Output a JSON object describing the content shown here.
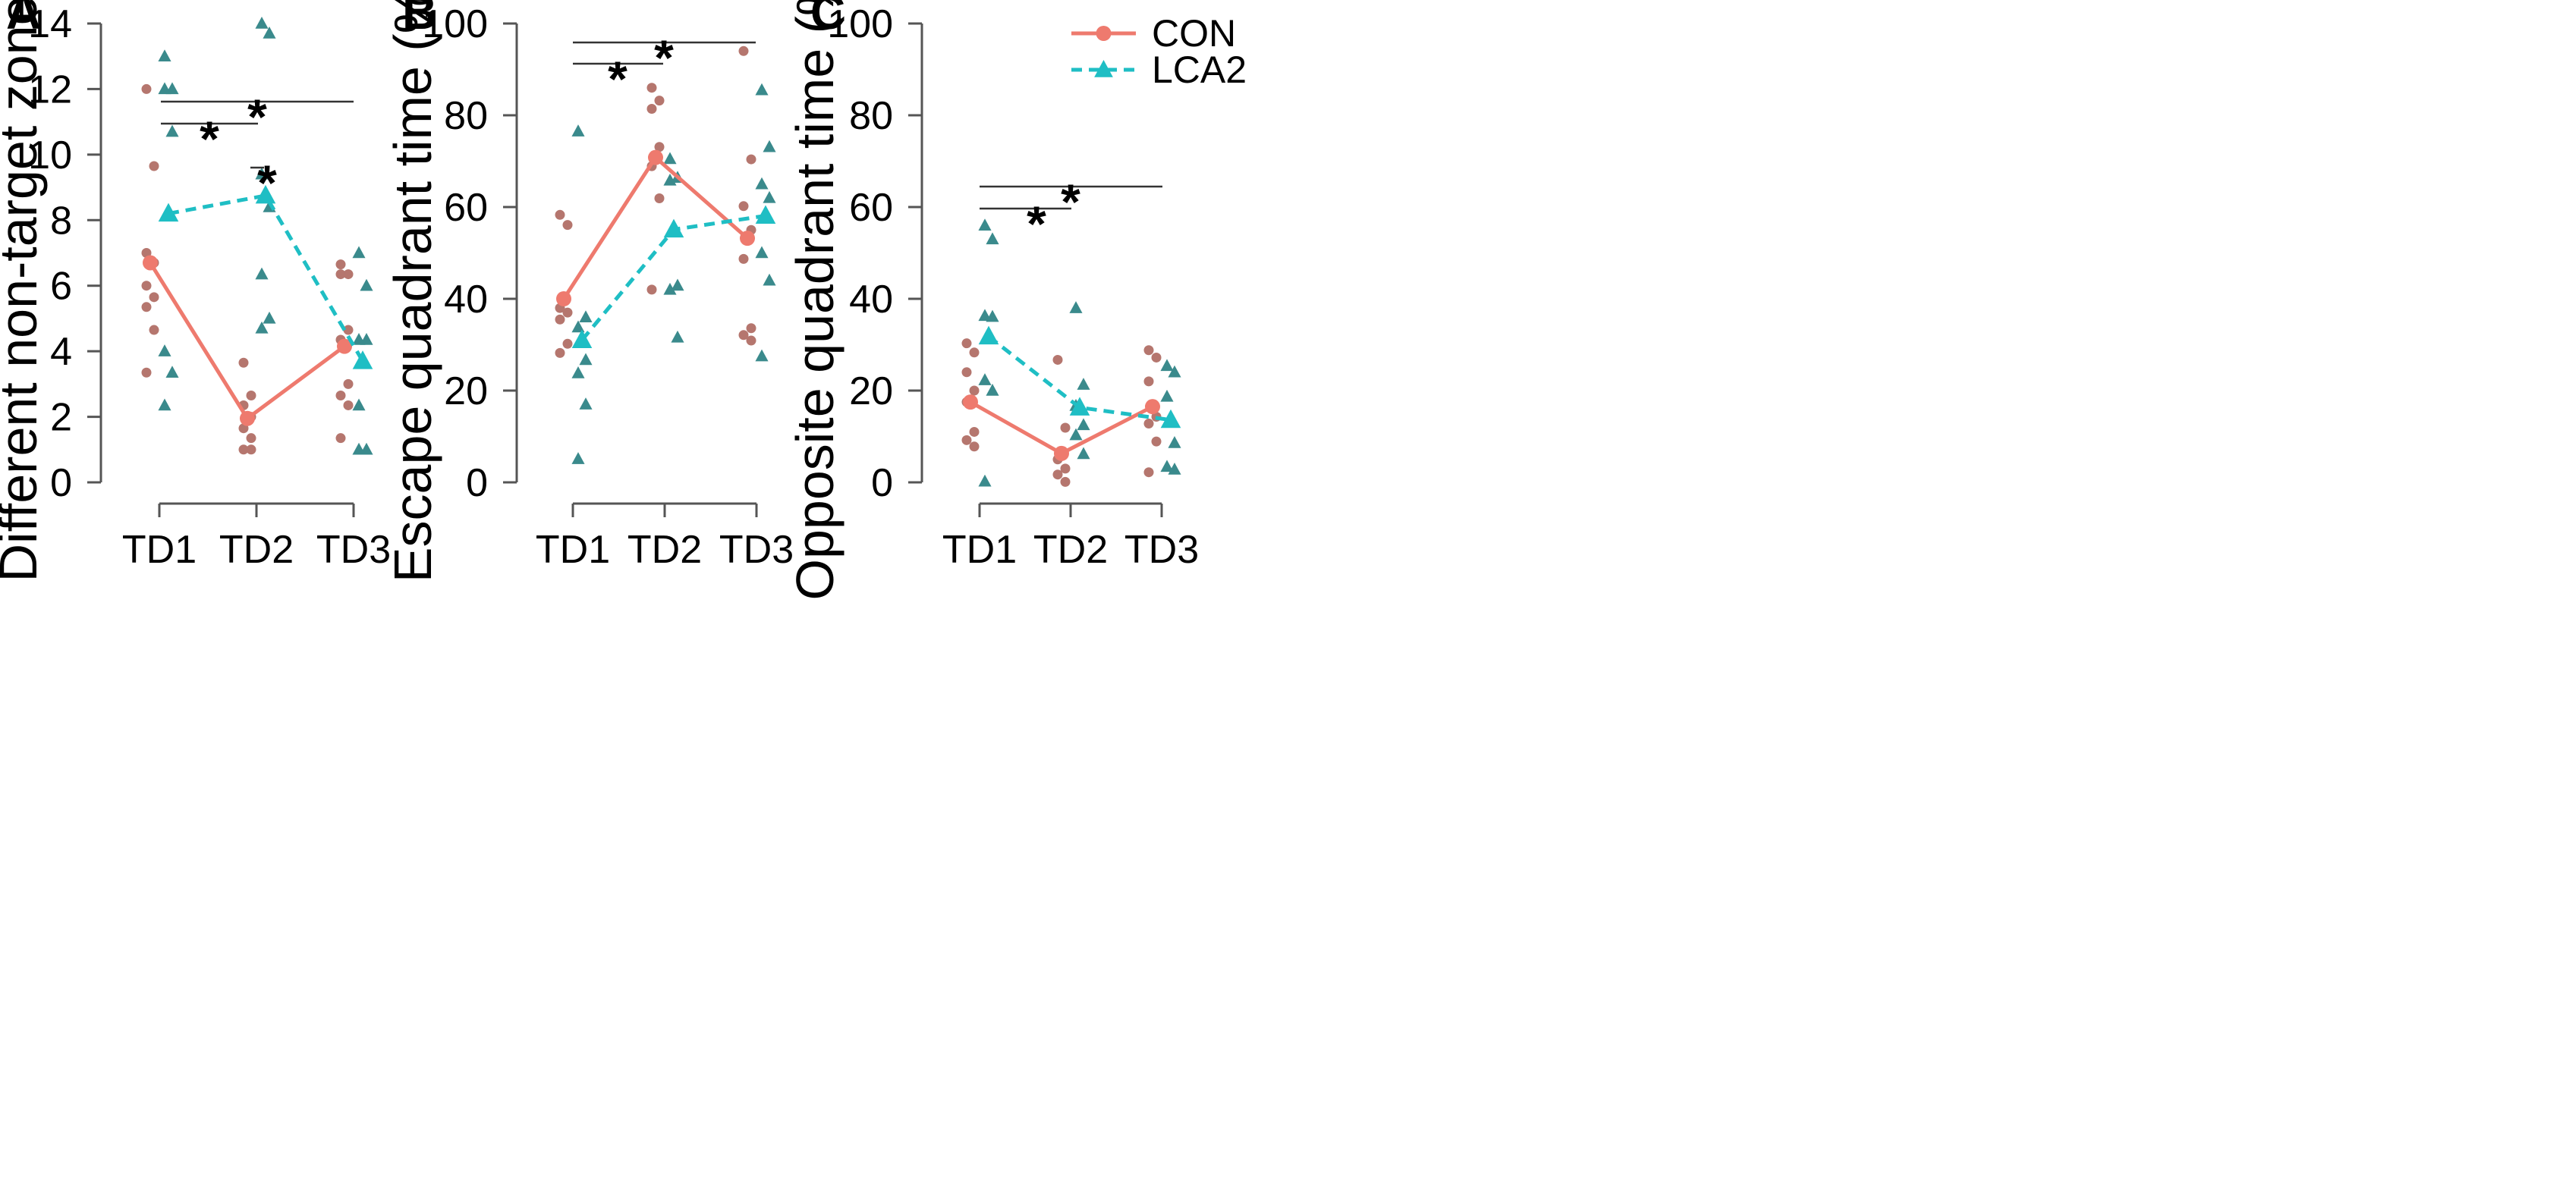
{
  "colors": {
    "con_line": "#ee7a6e",
    "con_point": "#b5766e",
    "lca2_line": "#1fbec4",
    "lca2_point": "#3a8a8c"
  },
  "chart_data": [
    {
      "type": "line",
      "panel": "A",
      "xlabel": "",
      "ylabel": "Different non-target zones",
      "ylim": [
        0,
        14
      ],
      "yticks": [
        0,
        2,
        4,
        6,
        8,
        10,
        12,
        14
      ],
      "categories": [
        "TD1",
        "TD2",
        "TD3"
      ],
      "series": [
        {
          "name": "CON",
          "means": [
            6.7,
            1.95,
            4.15
          ],
          "individual": [
            [
              12,
              9.65,
              7,
              6.7,
              6,
              5.65,
              5.35,
              4.65,
              3.35
            ],
            [
              3.65,
              2.65,
              2.35,
              2,
              1.65,
              1.35,
              1,
              1
            ],
            [
              6.65,
              6.35,
              6.35,
              4.65,
              4.35,
              3,
              2.65,
              2.35,
              1.35
            ]
          ]
        },
        {
          "name": "LCA2",
          "means": [
            8.2,
            8.75,
            3.7
          ],
          "individual": [
            [
              13,
              12,
              12,
              10.7,
              4,
              3.35,
              2.35
            ],
            [
              14,
              13.7,
              9.4,
              8.4,
              6.35,
              5,
              4.7
            ],
            [
              7,
              6,
              4.35,
              4.35,
              2.35,
              1,
              1
            ]
          ]
        }
      ],
      "significance": [
        {
          "from": "TD1",
          "to": "TD2",
          "label": "*"
        },
        {
          "from": "TD1",
          "to": "TD3",
          "label": "*"
        },
        {
          "at": "TD2",
          "label": "*"
        }
      ]
    },
    {
      "type": "line",
      "panel": "B",
      "xlabel": "",
      "ylabel": "Escape quadrant time (%)",
      "ylim": [
        0,
        100
      ],
      "yticks": [
        0,
        20,
        40,
        60,
        80,
        100
      ],
      "categories": [
        "TD1",
        "TD2",
        "TD3"
      ],
      "series": [
        {
          "name": "CON",
          "means": [
            40,
            70.8,
            53.2
          ],
          "individual": [
            [
              58.3,
              56.1,
              38,
              37,
              35.5,
              30.2,
              28.2
            ],
            [
              86,
              83.2,
              81.4,
              73.1,
              68.9,
              61.9,
              42
            ],
            [
              94,
              70.4,
              60.2,
              55,
              48.7,
              33.6,
              32.1,
              30.9
            ]
          ]
        },
        {
          "name": "LCA2",
          "means": [
            31,
            55.1,
            58.1
          ],
          "individual": [
            [
              76.5,
              36,
              33.8,
              26.7,
              23.8,
              17,
              5.1
            ],
            [
              70.5,
              66.4,
              65.8,
              42.9,
              42,
              31.6
            ],
            [
              85.5,
              73.1,
              65,
              62,
              50,
              44,
              27.5
            ]
          ]
        }
      ],
      "significance": [
        {
          "from": "TD1",
          "to": "TD2",
          "label": "*"
        },
        {
          "from": "TD1",
          "to": "TD3",
          "label": "*"
        }
      ]
    },
    {
      "type": "line",
      "panel": "C",
      "xlabel": "",
      "ylabel": "Opposite quadrant time (%)",
      "ylim": [
        0,
        100
      ],
      "yticks": [
        0,
        20,
        40,
        60,
        80,
        100
      ],
      "categories": [
        "TD1",
        "TD2",
        "TD3"
      ],
      "legend": {
        "position": "top-right",
        "entries": [
          "CON",
          "LCA2"
        ]
      },
      "series": [
        {
          "name": "CON",
          "means": [
            17.5,
            6.3,
            16.5
          ],
          "individual": [
            [
              30.3,
              28.3,
              24,
              20,
              17.5,
              11,
              9.2,
              7.8
            ],
            [
              26.7,
              11.9,
              5,
              3,
              1.7,
              0.1
            ],
            [
              28.8,
              27.2,
              22,
              14.3,
              12.8,
              8.9,
              2.2
            ]
          ]
        },
        {
          "name": "LCA2",
          "means": [
            31.8,
            16.3,
            13.6
          ],
          "individual": [
            [
              56,
              53,
              36.3,
              36.1,
              22.3,
              20,
              0.2
            ],
            [
              38,
              21.3,
              16.7,
              12.5,
              10.3,
              6.2
            ],
            [
              25.4,
              24,
              18.7,
              8.6,
              3.4,
              2.8
            ]
          ]
        }
      ],
      "significance": [
        {
          "from": "TD1",
          "to": "TD2",
          "label": "*"
        },
        {
          "from": "TD1",
          "to": "TD3",
          "label": "*"
        }
      ]
    }
  ]
}
